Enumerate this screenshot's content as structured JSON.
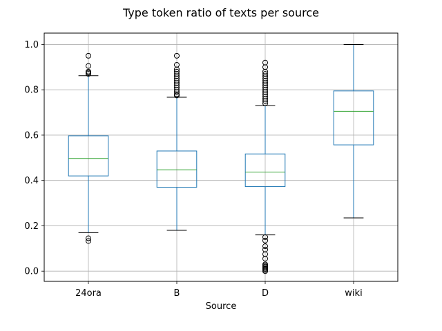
{
  "chart_data": {
    "type": "box",
    "title": "Type token ratio of texts per source",
    "xlabel": "Source",
    "ylabel": "",
    "ylim": [
      -0.045,
      1.05
    ],
    "yticks": [
      0.0,
      0.2,
      0.4,
      0.6,
      0.8,
      1.0
    ],
    "ytick_labels": [
      "0.0",
      "0.2",
      "0.4",
      "0.6",
      "0.8",
      "1.0"
    ],
    "grid": true,
    "categories": [
      "24ora",
      "B",
      "D",
      "wiki"
    ],
    "boxes": [
      {
        "category": "24ora",
        "whisker_low": 0.17,
        "q1": 0.42,
        "median": 0.497,
        "q3": 0.597,
        "whisker_high": 0.862,
        "outliers": [
          0.133,
          0.145,
          0.87,
          0.875,
          0.88,
          0.905,
          0.95
        ]
      },
      {
        "category": "B",
        "whisker_low": 0.18,
        "q1": 0.37,
        "median": 0.447,
        "q3": 0.53,
        "whisker_high": 0.767,
        "outliers": [
          0.775,
          0.78,
          0.79,
          0.8,
          0.81,
          0.82,
          0.83,
          0.84,
          0.85,
          0.86,
          0.87,
          0.88,
          0.89,
          0.91,
          0.95
        ]
      },
      {
        "category": "D",
        "whisker_low": 0.16,
        "q1": 0.373,
        "median": 0.437,
        "q3": 0.517,
        "whisker_high": 0.73,
        "outliers": [
          0.0,
          0.005,
          0.01,
          0.015,
          0.02,
          0.025,
          0.03,
          0.055,
          0.075,
          0.095,
          0.11,
          0.135,
          0.15,
          0.74,
          0.75,
          0.76,
          0.77,
          0.78,
          0.79,
          0.8,
          0.81,
          0.82,
          0.83,
          0.84,
          0.85,
          0.86,
          0.87,
          0.88,
          0.9,
          0.92
        ]
      },
      {
        "category": "wiki",
        "whisker_low": 0.235,
        "q1": 0.557,
        "median": 0.705,
        "q3": 0.795,
        "whisker_high": 1.0,
        "outliers": []
      }
    ],
    "colors": {
      "box": "#1f77b4",
      "median": "#2ca02c",
      "cap": "#000000",
      "grid": "#b0b0b0",
      "outlier": "#000000"
    }
  }
}
